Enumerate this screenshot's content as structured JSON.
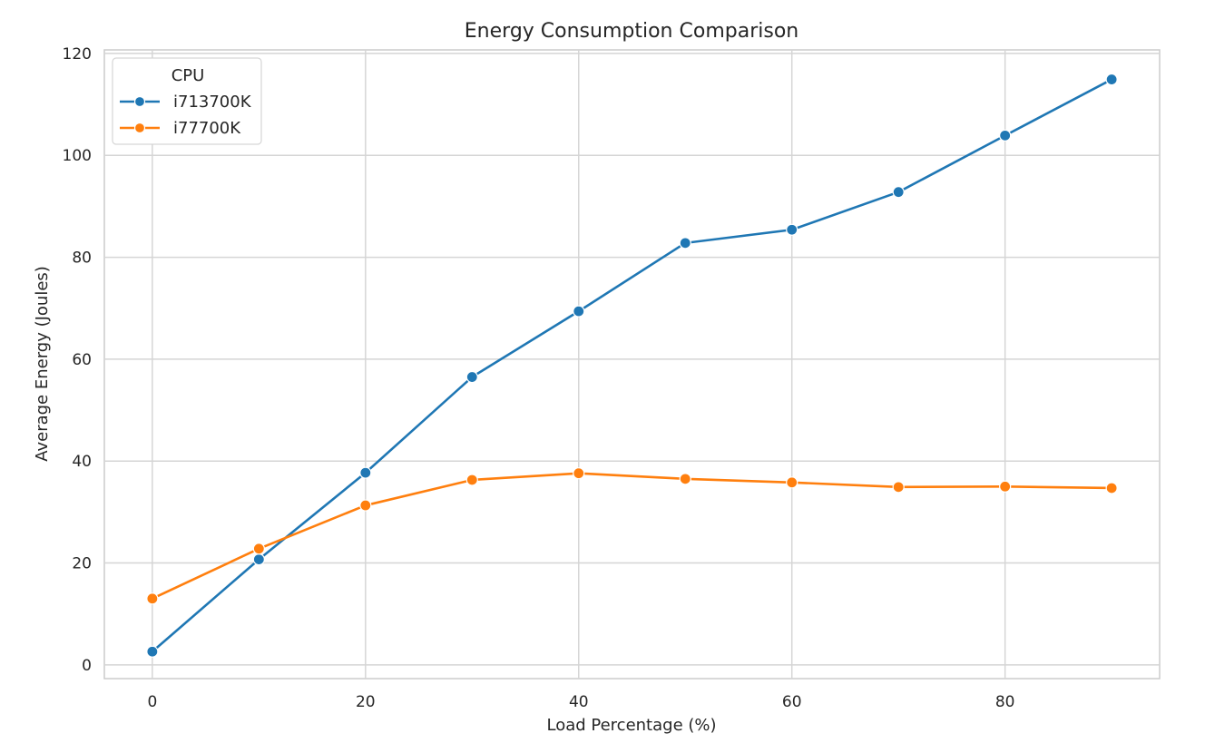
{
  "chart_data": {
    "type": "line",
    "title": "Energy Consumption Comparison",
    "xlabel": "Load Percentage (%)",
    "ylabel": "Average Energy (Joules)",
    "x": [
      0,
      10,
      20,
      30,
      40,
      50,
      60,
      70,
      80,
      90
    ],
    "xlim": [
      -4.5,
      94.5
    ],
    "ylim": [
      -2.7,
      120.7
    ],
    "xticks": [
      0,
      20,
      40,
      60,
      80
    ],
    "yticks": [
      0,
      20,
      40,
      60,
      80,
      100,
      120
    ],
    "grid": true,
    "legend": {
      "title": "CPU",
      "placement": "top-left"
    },
    "series": [
      {
        "name": "i713700K",
        "color": "#1f77b4",
        "marker": "circle",
        "values": [
          2.6,
          20.7,
          37.7,
          56.5,
          69.4,
          82.8,
          85.4,
          92.8,
          103.9,
          114.9
        ]
      },
      {
        "name": "i77700K",
        "color": "#ff7f0e",
        "marker": "circle",
        "values": [
          13.0,
          22.8,
          31.3,
          36.3,
          37.6,
          36.5,
          35.8,
          34.9,
          35.0,
          34.7
        ]
      }
    ]
  }
}
